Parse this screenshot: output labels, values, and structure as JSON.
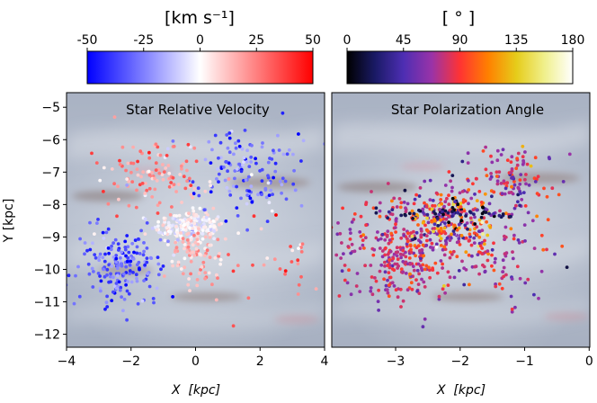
{
  "chart_data": [
    {
      "type": "scatter",
      "title": "Star Relative Velocity",
      "xlabel": "X  [kpc]",
      "ylabel": "Y [kpc]",
      "xlim": [
        -4,
        4
      ],
      "ylim": [
        -12.4,
        -4.55
      ],
      "xticks": [
        "−4",
        "−2",
        "0",
        "2",
        "4"
      ],
      "xtick_values": [
        -4,
        -2,
        0,
        2,
        4
      ],
      "yticks": [
        "−5",
        "−6",
        "−7",
        "−8",
        "−9",
        "−10",
        "−11",
        "−12"
      ],
      "ytick_values": [
        -5,
        -6,
        -7,
        -8,
        -9,
        -10,
        -11,
        -12
      ],
      "colorbar": {
        "label": "[km s⁻¹]",
        "ticks": [
          "-50",
          "-25",
          "0",
          "25",
          "50"
        ],
        "tick_values": [
          -50,
          -25,
          0,
          25,
          50
        ],
        "range": [
          -50,
          50
        ],
        "colormap": "bwr",
        "colors": [
          "#0000ff",
          "#ffffff",
          "#ff0000"
        ]
      },
      "background": "Milky Way map, grey-blue",
      "clusters": [
        {
          "name": "central-white",
          "x_mean": -0.2,
          "y_mean": -8.7,
          "x_sd": 0.55,
          "y_sd": 0.25,
          "value_mean": 0,
          "value_sd": 6,
          "count": 220
        },
        {
          "name": "upper-right-blue",
          "x_mean": 1.6,
          "y_mean": -7.0,
          "x_sd": 0.8,
          "y_sd": 0.65,
          "value_mean": -30,
          "value_sd": 12,
          "count": 150
        },
        {
          "name": "upper-left-red",
          "x_mean": -1.3,
          "y_mean": -7.1,
          "x_sd": 0.8,
          "y_sd": 0.6,
          "value_mean": 20,
          "value_sd": 10,
          "count": 120
        },
        {
          "name": "lower-left-blue",
          "x_mean": -2.3,
          "y_mean": -9.9,
          "x_sd": 0.7,
          "y_sd": 0.6,
          "value_mean": -32,
          "value_sd": 10,
          "count": 190
        },
        {
          "name": "lower-mid-pink",
          "x_mean": 0.1,
          "y_mean": -9.6,
          "x_sd": 0.5,
          "y_sd": 0.55,
          "value_mean": 15,
          "value_sd": 8,
          "count": 90
        },
        {
          "name": "far-right-red",
          "x_mean": 2.6,
          "y_mean": -9.6,
          "x_sd": 0.7,
          "y_sd": 0.9,
          "value_mean": 28,
          "value_sd": 12,
          "count": 30
        }
      ]
    },
    {
      "type": "scatter",
      "title": "Star Polarization Angle",
      "xlabel": "X  [kpc]",
      "ylabel": "",
      "xlim": [
        -3.99,
        0.01
      ],
      "ylim": [
        -12.4,
        -4.55
      ],
      "xticks": [
        "−3",
        "−2",
        "−1",
        "0"
      ],
      "xtick_values": [
        -3,
        -2,
        -1,
        0
      ],
      "colorbar": {
        "label": "[ ° ]",
        "ticks": [
          "0",
          "45",
          "90",
          "135",
          "180"
        ],
        "tick_values": [
          0,
          45,
          90,
          135,
          180
        ],
        "range": [
          0,
          180
        ],
        "colormap": "CMRmap",
        "colors": [
          "#000000",
          "#1a1a66",
          "#4d2eb3",
          "#9933a8",
          "#ff3333",
          "#ff8000",
          "#e6cc1a",
          "#f0f08c",
          "#ffffff"
        ]
      },
      "background": "Milky Way map, grey-blue",
      "clusters": [
        {
          "name": "lower-left-red",
          "x_mean": -2.9,
          "y_mean": -9.4,
          "x_sd": 0.45,
          "y_sd": 0.8,
          "value_mean": 78,
          "value_sd": 14,
          "count": 340
        },
        {
          "name": "center",
          "x_mean": -2.15,
          "y_mean": -8.4,
          "x_sd": 0.35,
          "y_sd": 0.45,
          "value_mean": 82,
          "value_sd": 35,
          "count": 230
        },
        {
          "name": "upper-right",
          "x_mean": -1.25,
          "y_mean": -7.3,
          "x_sd": 0.4,
          "y_sd": 0.6,
          "value_mean": 75,
          "value_sd": 20,
          "count": 130
        },
        {
          "name": "lower-right",
          "x_mean": -1.4,
          "y_mean": -9.7,
          "x_sd": 0.45,
          "y_sd": 0.7,
          "value_mean": 72,
          "value_sd": 18,
          "count": 90
        },
        {
          "name": "dark-band",
          "x_mean": -2.0,
          "y_mean": -8.3,
          "x_sd": 0.6,
          "y_sd": 0.12,
          "value_mean": 20,
          "value_sd": 12,
          "count": 50
        }
      ]
    }
  ]
}
